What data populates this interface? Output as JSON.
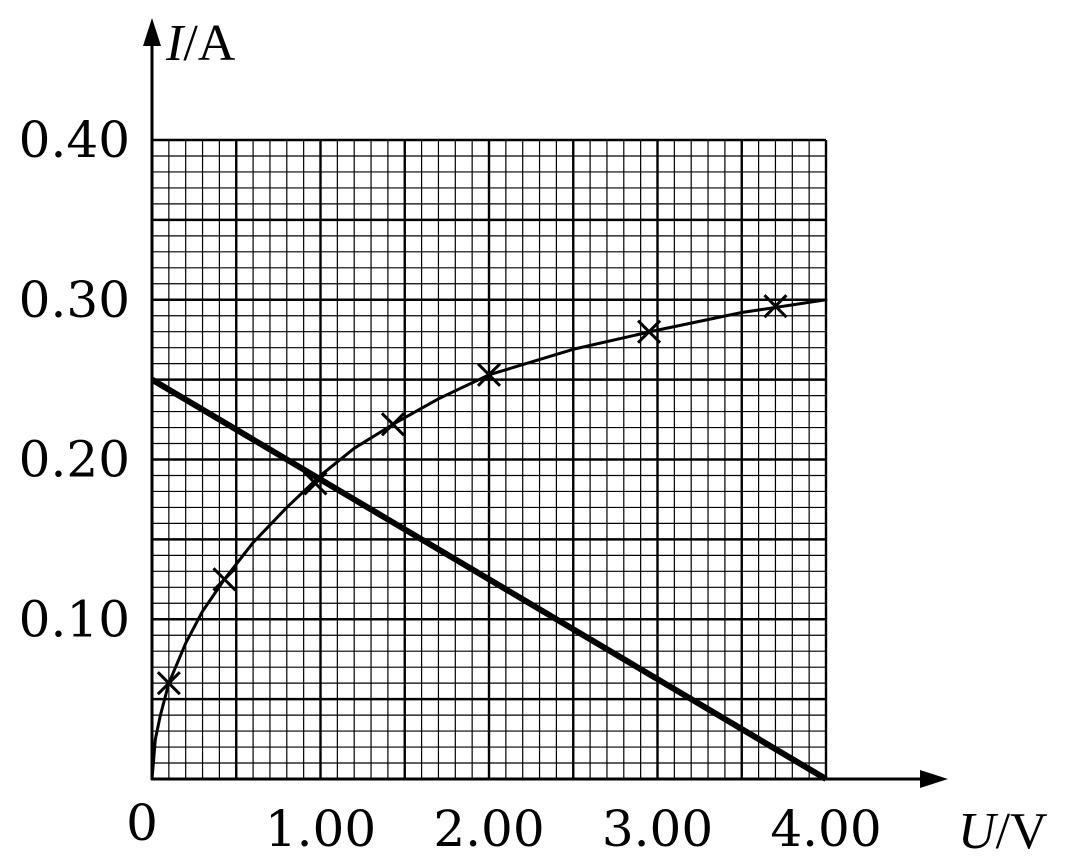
{
  "chart_data": {
    "type": "line",
    "xlabel": {
      "symbol": "U",
      "unit": "/V"
    },
    "ylabel": {
      "symbol": "I",
      "unit": "/A"
    },
    "origin_label": "0",
    "x_ticks": [
      {
        "value": 1.0,
        "label": "1.00"
      },
      {
        "value": 2.0,
        "label": "2.00"
      },
      {
        "value": 3.0,
        "label": "3.00"
      },
      {
        "value": 4.0,
        "label": "4.00"
      }
    ],
    "y_ticks": [
      {
        "value": 0.1,
        "label": "0.10"
      },
      {
        "value": 0.2,
        "label": "0.20"
      },
      {
        "value": 0.3,
        "label": "0.30"
      },
      {
        "value": 0.4,
        "label": "0.40"
      }
    ],
    "xlim": [
      0,
      4.0
    ],
    "ylim": [
      0,
      0.4
    ],
    "grid": {
      "major_x": 0.5,
      "major_y": 0.05,
      "minor_x": 0.1,
      "minor_y": 0.01
    },
    "series": [
      {
        "type": "scatter",
        "marker": "x",
        "points": [
          {
            "x": 0.1,
            "y": 0.06
          },
          {
            "x": 0.43,
            "y": 0.125
          },
          {
            "x": 0.97,
            "y": 0.185
          },
          {
            "x": 1.43,
            "y": 0.222
          },
          {
            "x": 2.0,
            "y": 0.253
          },
          {
            "x": 2.95,
            "y": 0.28
          },
          {
            "x": 3.7,
            "y": 0.296
          }
        ]
      },
      {
        "type": "curve",
        "points": [
          {
            "x": 0.0,
            "y": 0.0
          },
          {
            "x": 0.02,
            "y": 0.025
          },
          {
            "x": 0.05,
            "y": 0.04
          },
          {
            "x": 0.1,
            "y": 0.06
          },
          {
            "x": 0.2,
            "y": 0.085
          },
          {
            "x": 0.3,
            "y": 0.105
          },
          {
            "x": 0.43,
            "y": 0.125
          },
          {
            "x": 0.6,
            "y": 0.148
          },
          {
            "x": 0.8,
            "y": 0.17
          },
          {
            "x": 1.0,
            "y": 0.19
          },
          {
            "x": 1.2,
            "y": 0.207
          },
          {
            "x": 1.43,
            "y": 0.222
          },
          {
            "x": 1.7,
            "y": 0.238
          },
          {
            "x": 2.0,
            "y": 0.253
          },
          {
            "x": 2.5,
            "y": 0.269
          },
          {
            "x": 3.0,
            "y": 0.281
          },
          {
            "x": 3.5,
            "y": 0.292
          },
          {
            "x": 4.0,
            "y": 0.3
          }
        ]
      },
      {
        "type": "line",
        "points": [
          {
            "x": 0.0,
            "y": 0.25
          },
          {
            "x": 4.0,
            "y": 0.0
          }
        ]
      }
    ]
  }
}
